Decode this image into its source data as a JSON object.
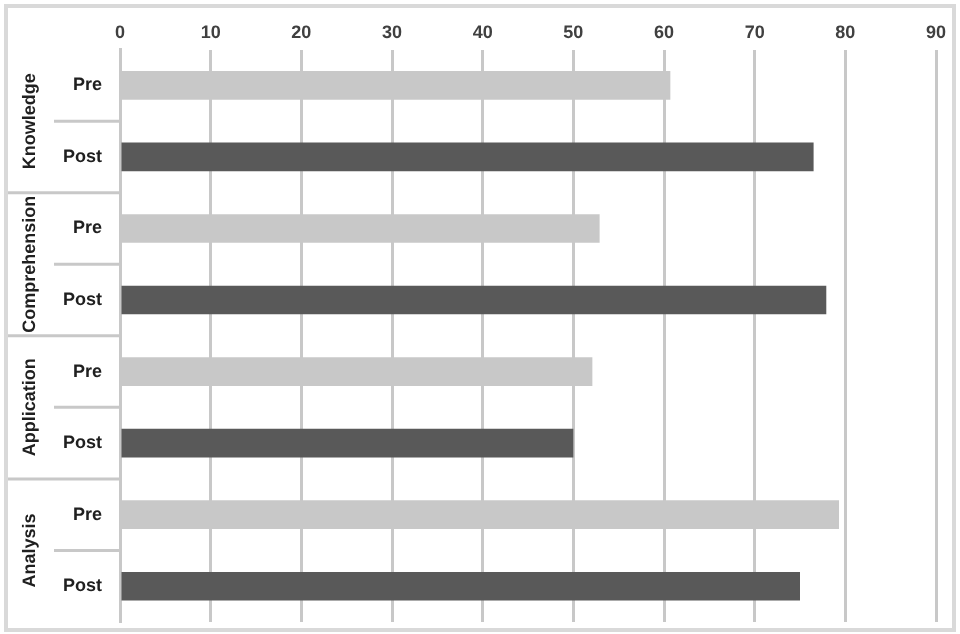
{
  "chart_data": {
    "type": "bar",
    "orientation": "horizontal",
    "categories": [
      "Knowledge",
      "Comprehension",
      "Application",
      "Analysis"
    ],
    "series": [
      {
        "name": "Pre",
        "color": "#c8c8c8",
        "values": [
          60.7,
          52.9,
          52.1,
          79.3
        ]
      },
      {
        "name": "Post",
        "color": "#595959",
        "values": [
          76.5,
          77.9,
          50,
          75
        ]
      }
    ],
    "xlim": [
      0,
      90
    ],
    "xticks": [
      0,
      10,
      20,
      30,
      40,
      50,
      60,
      70,
      80,
      90
    ],
    "grid": "x"
  }
}
